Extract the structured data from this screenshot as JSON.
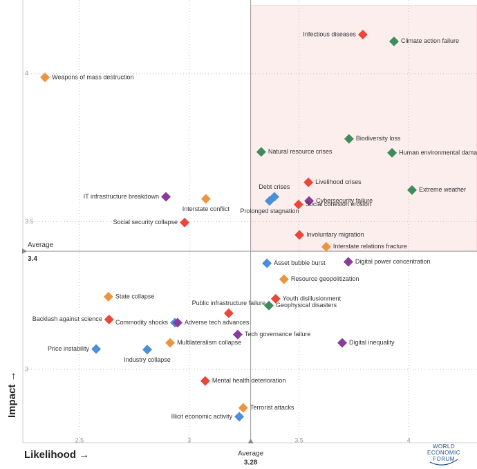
{
  "chart_data": {
    "type": "scatter",
    "x_label": "Likelihood →",
    "y_label": "Impact →",
    "xlim": [
      2.242,
      4.311
    ],
    "ylim": [
      2.752,
      4.25
    ],
    "xticks": [
      2.5,
      3,
      3.5,
      4
    ],
    "yticks": [
      3,
      3.5,
      4
    ],
    "x_average": 3.28,
    "x_average_label": "Average",
    "y_average": 3.4,
    "y_average_label": "Average",
    "grid": true,
    "logo": [
      "WORLD",
      "ECONOMIC",
      "FORUM"
    ],
    "points": [
      {
        "label": "Infectious diseases",
        "x": 3.791,
        "y": 4.133,
        "color": "#e8473a"
      },
      {
        "label": "Climate action failure",
        "x": 3.933,
        "y": 4.11,
        "color": "#3d8c5c"
      },
      {
        "label": "Weapons of mass destruction",
        "x": 2.343,
        "y": 3.988,
        "color": "#ec9440"
      },
      {
        "label": "Biodiversity loss",
        "x": 3.728,
        "y": 3.78,
        "color": "#3d8c5c"
      },
      {
        "label": "Natural resource crises",
        "x": 3.328,
        "y": 3.736,
        "color": "#3d8c5c"
      },
      {
        "label": "Human environmental damage",
        "x": 3.924,
        "y": 3.733,
        "color": "#3d8c5c"
      },
      {
        "label": "Livelihood crises",
        "x": 3.543,
        "y": 3.633,
        "color": "#e8473a"
      },
      {
        "label": "Extreme weather",
        "x": 4.015,
        "y": 3.607,
        "color": "#3d8c5c"
      },
      {
        "label": "Debt crises",
        "x": 3.388,
        "y": 3.584,
        "color": "#4a8fd8"
      },
      {
        "label": "IT infrastructure breakdown",
        "x": 2.894,
        "y": 3.584,
        "color": "#8a3a9a"
      },
      {
        "label": "Interstate conflict",
        "x": 3.076,
        "y": 3.577,
        "color": "#ec9440"
      },
      {
        "label": "Prolonged stagnation",
        "x": 3.366,
        "y": 3.57,
        "color": "#4a8fd8"
      },
      {
        "label": "Cybersecurity failure",
        "x": 3.546,
        "y": 3.57,
        "color": "#8a3a9a"
      },
      {
        "label": "Social cohesion erosion",
        "x": 3.498,
        "y": 3.558,
        "color": "#e8473a"
      },
      {
        "label": "Social security collapse",
        "x": 2.979,
        "y": 3.497,
        "color": "#e8473a"
      },
      {
        "label": "Involuntary migration",
        "x": 3.502,
        "y": 3.455,
        "color": "#e8473a"
      },
      {
        "label": "Interstate relations fracture",
        "x": 3.624,
        "y": 3.415,
        "color": "#ec9440"
      },
      {
        "label": "Digital power concentration",
        "x": 3.725,
        "y": 3.364,
        "color": "#8a3a9a"
      },
      {
        "label": "Asset bubble burst",
        "x": 3.354,
        "y": 3.359,
        "color": "#4a8fd8"
      },
      {
        "label": "Resource geopolitization",
        "x": 3.432,
        "y": 3.305,
        "color": "#ec9440"
      },
      {
        "label": "State collapse",
        "x": 2.632,
        "y": 3.246,
        "color": "#ec9440"
      },
      {
        "label": "Youth disillusionment",
        "x": 3.394,
        "y": 3.239,
        "color": "#e8473a"
      },
      {
        "label": "Geophysical disasters",
        "x": 3.363,
        "y": 3.216,
        "color": "#3d8c5c"
      },
      {
        "label": "Public infrastructure failure",
        "x": 3.18,
        "y": 3.19,
        "color": "#e8473a"
      },
      {
        "label": "Backlash against science",
        "x": 2.635,
        "y": 3.169,
        "color": "#e8473a"
      },
      {
        "label": "Commodity shocks",
        "x": 2.935,
        "y": 3.158,
        "color": "#4a8fd8"
      },
      {
        "label": "Adverse tech advances",
        "x": 2.947,
        "y": 3.158,
        "color": "#8a3a9a"
      },
      {
        "label": "Tech governance failure",
        "x": 3.221,
        "y": 3.118,
        "color": "#8a3a9a"
      },
      {
        "label": "Multilateralism collapse",
        "x": 2.913,
        "y": 3.09,
        "color": "#ec9440"
      },
      {
        "label": "Digital inequality",
        "x": 3.697,
        "y": 3.09,
        "color": "#8a3a9a"
      },
      {
        "label": "Price instability",
        "x": 2.576,
        "y": 3.069,
        "color": "#4a8fd8"
      },
      {
        "label": "Industry collapse",
        "x": 2.809,
        "y": 3.067,
        "color": "#4a8fd8"
      },
      {
        "label": "Mental health deterioration",
        "x": 3.073,
        "y": 2.961,
        "color": "#e8473a"
      },
      {
        "label": "Terrorist attacks",
        "x": 3.246,
        "y": 2.87,
        "color": "#ec9440"
      },
      {
        "label": "Illicit economic activity",
        "x": 3.228,
        "y": 2.84,
        "color": "#4a8fd8"
      }
    ]
  }
}
